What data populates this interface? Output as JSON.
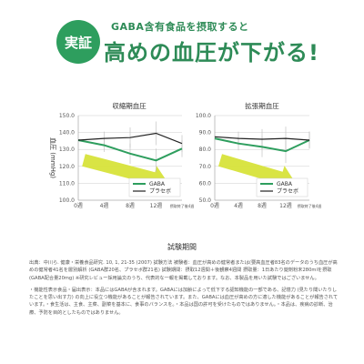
{
  "header": {
    "badge": "実証",
    "subtitle": "GABA含有食品を摂取すると",
    "title": "高めの血圧が下がる!"
  },
  "x_axis_title": "試験期間",
  "notes": [
    "出典：中川ら. 健康・栄養食品研究. 10, 1, 21-35 (2007) 試験方法 被験者：血圧が高めの健常者または(要高血圧者83名のデータのうち血圧が高めの健常者41名を層別解析 (GABA群20名、プラセボ群21名) 試験期間：摂取12週間＋後観察4週間 摂取量：1日あたり錠剤粉末280mlを摂取 (GABA配合量20mg) ※研究レビュー採用論文のうち、代表的な一報を掲載しております。なお、本製品を用いた試験ではございません。",
    "・機能性表示食品・届出表示：本品にはGABAが含まれます。GABAには加齢によって低下する認知機能の一部である、記憶力 (見たり聞いたりしたことを思い出す力) の向上に役立つ機能があることが報告されています。また、GABAには血圧が高めの方に適した機能があることが報告されています。・食生活は、主食、主菜、副菜を基本に、食事のバランスを。・本品は国の許可を受けたものではありません。・本品は、疾病の診断、治療、予防を目的としたものではありません。"
  ],
  "colors": {
    "gaba": "#2e9e5e",
    "placebo": "#222222",
    "arrow": "#d7e33a",
    "grid": "#cccccc",
    "accent": "#2e8b57"
  },
  "chart_data": [
    {
      "type": "line",
      "title": "収縮期血圧",
      "ylabel": "血圧 (mmHg)",
      "ylim": [
        100,
        150
      ],
      "yticks": [
        "100.0",
        "110.0",
        "120.0",
        "130.0",
        "140.0",
        "150.0"
      ],
      "categories": [
        "0週",
        "4週",
        "8週",
        "12週",
        "摂取終了後4週"
      ],
      "series": [
        {
          "name": "GABA",
          "color": "#2e9e5e",
          "values": [
            135.5,
            132.5,
            127.5,
            123.5,
            130.5
          ]
        },
        {
          "name": "プラセボ",
          "color": "#222222",
          "values": [
            135.5,
            136.5,
            137.0,
            139.5,
            133.5
          ]
        }
      ],
      "legend": "bottom-right",
      "grid": true
    },
    {
      "type": "line",
      "title": "拡張期血圧",
      "ylabel": "",
      "ylim": [
        50,
        100
      ],
      "yticks": [
        "50.0",
        "60.0",
        "70.0",
        "80.0",
        "90.0",
        "100.0"
      ],
      "categories": [
        "0週",
        "4週",
        "8週",
        "12週",
        "摂取終了後4週"
      ],
      "series": [
        {
          "name": "GABA",
          "color": "#2e9e5e",
          "values": [
            86.5,
            83.5,
            81.5,
            79.0,
            85.5
          ]
        },
        {
          "name": "プラセボ",
          "color": "#222222",
          "values": [
            87.5,
            86.5,
            86.0,
            86.5,
            85.5
          ]
        }
      ],
      "legend": "bottom-right",
      "grid": true
    }
  ]
}
